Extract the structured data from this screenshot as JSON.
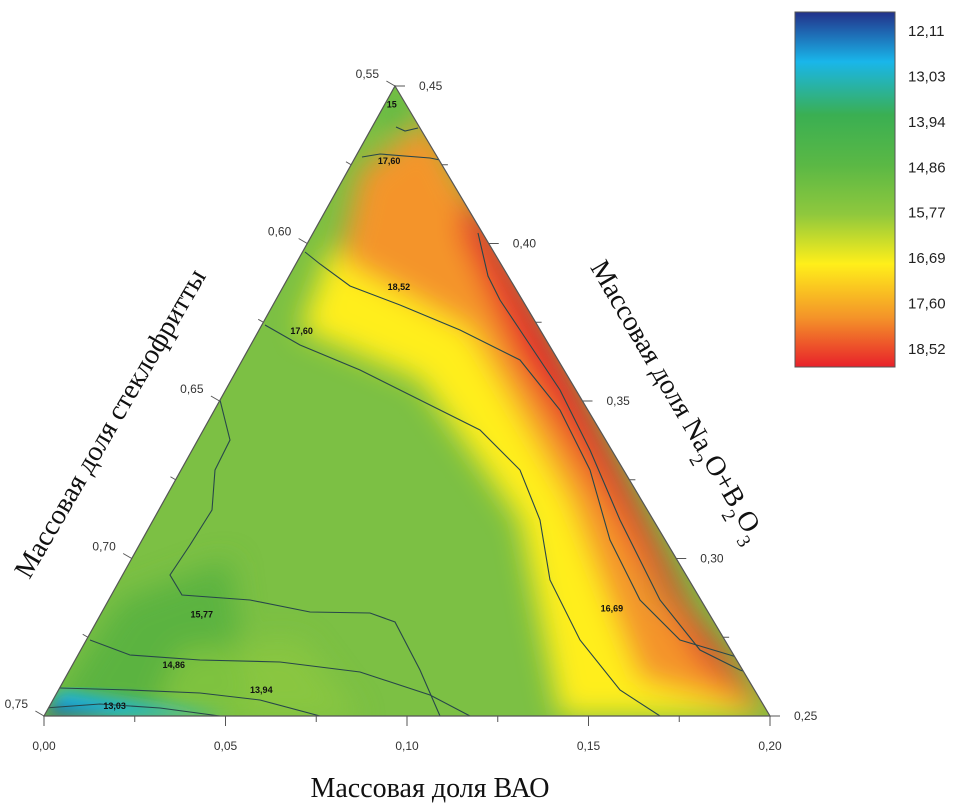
{
  "chart_data": {
    "type": "ternary-contour",
    "title": "",
    "axes": {
      "bottom": {
        "label": "Массовая доля ВАО",
        "min": 0.0,
        "max": 0.2,
        "ticks": [
          "0,00",
          "0,05",
          "0,10",
          "0,15",
          "0,20"
        ]
      },
      "left": {
        "label": "Массовая доля стеклофритты",
        "min": 0.55,
        "max": 0.75,
        "ticks": [
          "0,55",
          "0,60",
          "0,65",
          "0,70",
          "0,75"
        ]
      },
      "right": {
        "label_parts": [
          "Массовая доля Na",
          "2",
          "O+B",
          "2",
          "O",
          "3"
        ],
        "min": 0.25,
        "max": 0.45,
        "ticks": [
          "0,45",
          "0,40",
          "0,35",
          "0,30",
          "0,25"
        ]
      }
    },
    "legend": {
      "position": "top-right",
      "values": [
        "12,11",
        "13,03",
        "13,94",
        "14,86",
        "15,77",
        "16,69",
        "17,60",
        "18,52"
      ],
      "colors": [
        "#23318a",
        "#19b6ea",
        "#3aaf52",
        "#5ab845",
        "#8fc83d",
        "#ffef1a",
        "#f49429",
        "#e8212a"
      ]
    },
    "contour_labels": [
      {
        "text": "17,60",
        "baryc": [
          0.05,
          0.88
        ]
      },
      {
        "text": "15",
        "baryc": [
          0.01,
          0.97
        ]
      },
      {
        "text": "18,52",
        "baryc": [
          0.16,
          0.68
        ]
      },
      {
        "text": "17,60",
        "baryc": [
          0.06,
          0.61
        ]
      },
      {
        "text": "15,77",
        "baryc": [
          0.14,
          0.16
        ]
      },
      {
        "text": "16,69",
        "baryc": [
          0.7,
          0.17
        ]
      },
      {
        "text": "14,86",
        "baryc": [
          0.14,
          0.08
        ]
      },
      {
        "text": "13,94",
        "baryc": [
          0.28,
          0.04
        ]
      },
      {
        "text": "13,03",
        "baryc": [
          0.09,
          0.015
        ]
      }
    ]
  }
}
